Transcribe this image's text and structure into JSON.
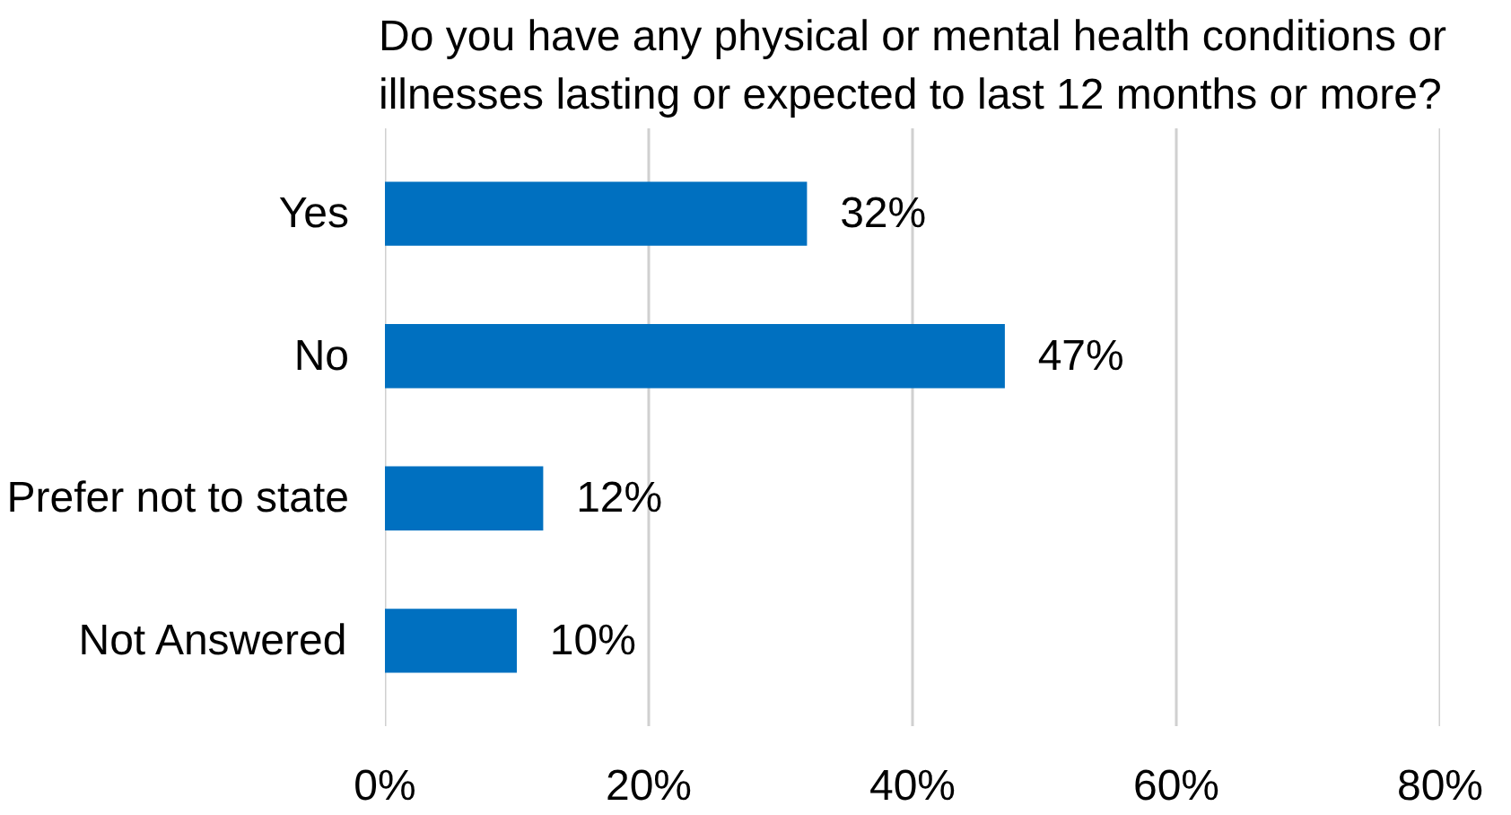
{
  "chart_data": {
    "type": "bar",
    "orientation": "horizontal",
    "title": "Do you have any physical or mental health conditions or illnesses lasting or expected to last 12 months or more?",
    "categories": [
      "Yes",
      "No",
      "Prefer not to state",
      "Not Answered"
    ],
    "values": [
      32,
      47,
      12,
      10
    ],
    "value_labels": [
      "32%",
      "47%",
      "12%",
      "10%"
    ],
    "color": "#0070c0",
    "xlim": [
      0,
      80
    ],
    "xticks": [
      {
        "value": 0,
        "label": "0%"
      },
      {
        "value": 20,
        "label": "20%"
      },
      {
        "value": 40,
        "label": "40%"
      },
      {
        "value": 60,
        "label": "60%"
      },
      {
        "value": 80,
        "label": "80%"
      }
    ],
    "grid": "x"
  }
}
